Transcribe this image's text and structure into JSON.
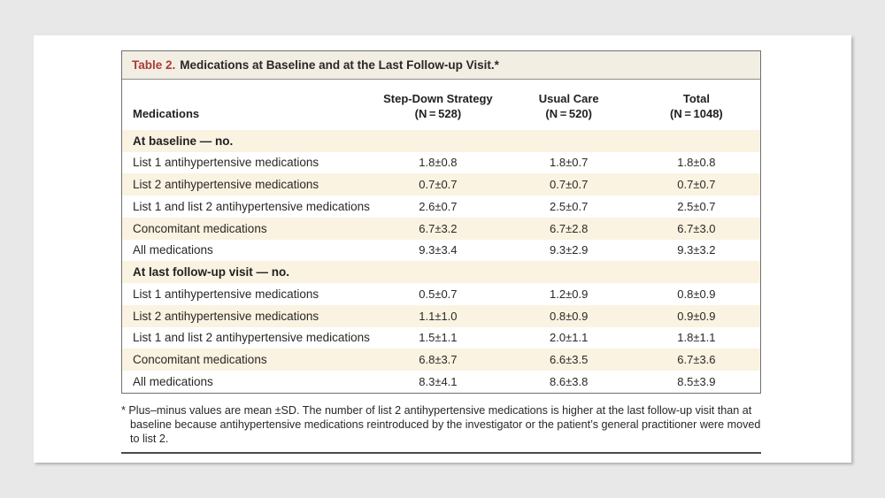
{
  "table": {
    "title_label": "Table 2.",
    "title_text": "Medications at Baseline and at the Last Follow-up Visit.*",
    "columns": {
      "row_header": "Medications",
      "groups": [
        {
          "name": "Step-Down Strategy",
          "n": "(N = 528)"
        },
        {
          "name": "Usual Care",
          "n": "(N = 520)"
        },
        {
          "name": "Total",
          "n": "(N = 1048)"
        }
      ]
    },
    "sections": [
      {
        "header": "At baseline — no.",
        "rows": [
          {
            "label": "List 1 antihypertensive medications",
            "values": [
              "1.8±0.8",
              "1.8±0.7",
              "1.8±0.8"
            ]
          },
          {
            "label": "List 2 antihypertensive medications",
            "values": [
              "0.7±0.7",
              "0.7±0.7",
              "0.7±0.7"
            ]
          },
          {
            "label": "List 1 and list 2 antihypertensive medications",
            "values": [
              "2.6±0.7",
              "2.5±0.7",
              "2.5±0.7"
            ]
          },
          {
            "label": "Concomitant medications",
            "values": [
              "6.7±3.2",
              "6.7±2.8",
              "6.7±3.0"
            ]
          },
          {
            "label": "All medications",
            "values": [
              "9.3±3.4",
              "9.3±2.9",
              "9.3±3.2"
            ]
          }
        ]
      },
      {
        "header": "At last follow-up visit — no.",
        "rows": [
          {
            "label": "List 1 antihypertensive medications",
            "values": [
              "0.5±0.7",
              "1.2±0.9",
              "0.8±0.9"
            ]
          },
          {
            "label": "List 2 antihypertensive medications",
            "values": [
              "1.1±1.0",
              "0.8±0.9",
              "0.9±0.9"
            ]
          },
          {
            "label": "List 1 and list 2 antihypertensive medications",
            "values": [
              "1.5±1.1",
              "2.0±1.1",
              "1.8±1.1"
            ]
          },
          {
            "label": "Concomitant medications",
            "values": [
              "6.8±3.7",
              "6.6±3.5",
              "6.7±3.6"
            ]
          },
          {
            "label": "All medications",
            "values": [
              "8.3±4.1",
              "8.6±3.8",
              "8.5±3.9"
            ]
          }
        ]
      }
    ]
  },
  "footnote": {
    "text": "* Plus–minus values are mean ±SD. The number of list 2 antihypertensive medications is higher at the last follow-up visit than at baseline because antihypertensive medications reintroduced by the investigator or the patient’s general practitioner were moved to list 2."
  },
  "colors": {
    "page_background": "#e8e8e8",
    "card_background": "#ffffff",
    "title_band": "#f3eee3",
    "shaded_row": "#faf3e2",
    "accent_red": "#a93b32",
    "table_border": "#707070"
  }
}
